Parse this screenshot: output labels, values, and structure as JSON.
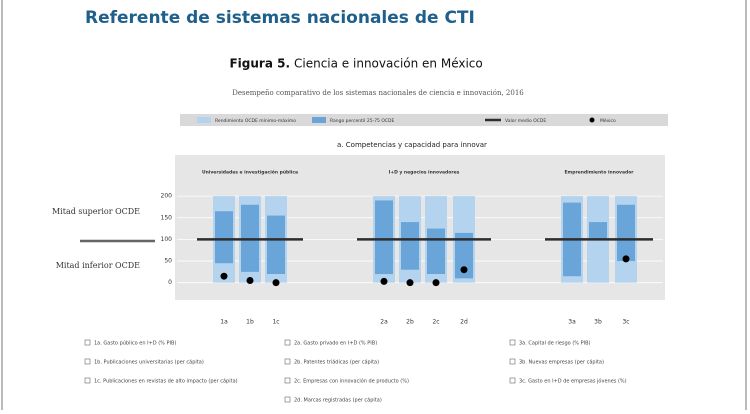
{
  "header": {
    "title": "Referente de sistemas nacionales de CTI"
  },
  "figure": {
    "title_bold": "Figura 5.",
    "title": "Ciencia e innovación en México",
    "subtitle": "Desempeño comparativo de los sistemas nacionales de ciencia e innovación, 2016"
  },
  "chart_data": {
    "type": "range-box",
    "panel_title": "a. Competencias y capacidad para innovar",
    "legend": [
      {
        "name": "Rendimiento OCDE mínimo-máximo",
        "color": "#b3d3ef"
      },
      {
        "name": "Rango percentil 25-75 OCDE",
        "color": "#69a5d8"
      },
      {
        "name": "Valor medio OCDE",
        "color": "#2e2e2e"
      },
      {
        "name": "México",
        "color": "#000000"
      }
    ],
    "y_upper_label": "Mitad superior OCDE",
    "y_lower_label": "Mitad inferior OCDE",
    "ylim": [
      -40,
      295
    ],
    "yticks": [
      0,
      50,
      100,
      150,
      200
    ],
    "grid": true,
    "groups": [
      {
        "title": "Universidades e investigación pública",
        "categories": [
          "1a",
          "1b",
          "1c"
        ],
        "range_low": [
          0,
          0,
          0
        ],
        "range_high": [
          200,
          200,
          200
        ],
        "iq_low": [
          45,
          25,
          20
        ],
        "iq_high": [
          165,
          180,
          155
        ],
        "oecd_median": 100,
        "mexico": [
          15,
          5,
          0
        ]
      },
      {
        "title": "I+D y negocios innovadores",
        "categories": [
          "2a",
          "2b",
          "2c",
          "2d"
        ],
        "range_low": [
          0,
          0,
          0,
          0
        ],
        "range_high": [
          200,
          200,
          200,
          200
        ],
        "iq_low": [
          20,
          30,
          20,
          10
        ],
        "iq_high": [
          190,
          140,
          125,
          115
        ],
        "oecd_median": 100,
        "mexico": [
          3,
          0,
          0,
          30
        ]
      },
      {
        "title": "Emprendimiento innovador",
        "categories": [
          "3a",
          "3b",
          "3c"
        ],
        "range_low": [
          0,
          0,
          0
        ],
        "range_high": [
          200,
          200,
          200
        ],
        "iq_low": [
          15,
          100,
          50
        ],
        "iq_high": [
          185,
          140,
          180
        ],
        "oecd_median": 100,
        "mexico": [
          null,
          null,
          55
        ]
      }
    ]
  },
  "notes": [
    [
      "1a. Gasto público en I+D (% PIB)",
      "1b. Publicaciones universitarias (per cápita)",
      "1c. Publicaciones en revistas de alto impacto (per cápita)"
    ],
    [
      "2a. Gasto privado en I+D (% PIB)",
      "2b. Patentes triádicas (per cápita)",
      "2c. Empresas con innovación de producto (%)",
      "2d. Marcas registradas (per cápita)"
    ],
    [
      "3a. Capital de riesgo (% PIB)",
      "3b. Nuevas empresas (per cápita)",
      "3c. Gasto en I+D de empresas jóvenes (%)"
    ]
  ]
}
